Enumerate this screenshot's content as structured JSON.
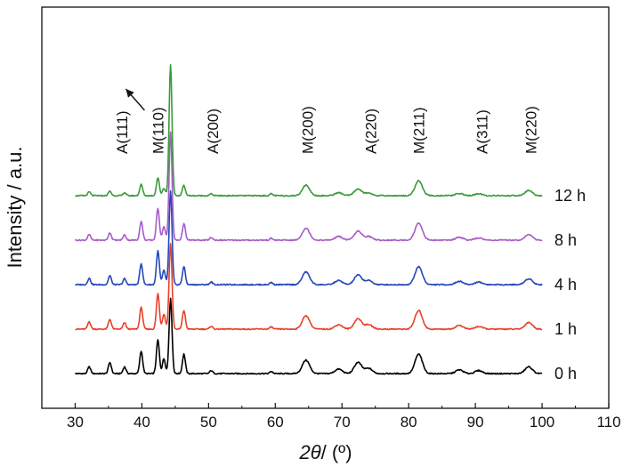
{
  "chart_data": {
    "type": "line",
    "title": "",
    "xlabel": "2θ/ (º)",
    "xlabel_parts": {
      "symbol": "2θ",
      "unit": "/ (º)"
    },
    "ylabel": "Intensity / a.u.",
    "xlim": [
      25,
      110
    ],
    "xticks": [
      30,
      40,
      50,
      60,
      70,
      80,
      90,
      100,
      110
    ],
    "xtick_labels": [
      "30",
      "40",
      "50",
      "60",
      "70",
      "80",
      "90",
      "100",
      "110"
    ],
    "y_ticks_shown": false,
    "grid": false,
    "legend": "none; series labelled at right end of each trace",
    "x_range_of_traces": [
      30,
      100
    ],
    "stacking_offset": 1.0,
    "series": [
      {
        "name": "0 h",
        "color": "#000000",
        "offset": 0
      },
      {
        "name": "1 h",
        "color": "#e8412a",
        "offset": 1
      },
      {
        "name": "4 h",
        "color": "#2448b8",
        "offset": 2
      },
      {
        "name": "8 h",
        "color": "#a65cc8",
        "offset": 3
      },
      {
        "name": "12 h",
        "color": "#3a9a3a",
        "offset": 4
      }
    ],
    "peaks": [
      {
        "x": 32.1,
        "h": [
          0.18,
          0.2,
          0.17,
          0.15,
          0.1
        ]
      },
      {
        "x": 35.2,
        "h": [
          0.3,
          0.26,
          0.24,
          0.2,
          0.12
        ]
      },
      {
        "x": 37.4,
        "h": [
          0.18,
          0.17,
          0.16,
          0.14,
          0.08
        ]
      },
      {
        "x": 39.9,
        "h": [
          0.6,
          0.58,
          0.56,
          0.5,
          0.3
        ]
      },
      {
        "x": 42.4,
        "h": [
          0.9,
          0.95,
          0.9,
          0.86,
          0.48
        ]
      },
      {
        "x": 43.3,
        "h": [
          0.4,
          0.4,
          0.38,
          0.36,
          0.2
        ]
      },
      {
        "x": 44.3,
        "h": [
          2.0,
          2.3,
          2.5,
          2.9,
          3.5
        ]
      },
      {
        "x": 46.3,
        "h": [
          0.52,
          0.5,
          0.48,
          0.44,
          0.28
        ]
      },
      {
        "x": 50.4,
        "h": [
          0.08,
          0.08,
          0.07,
          0.07,
          0.05
        ]
      },
      {
        "x": 59.4,
        "h": [
          0.06,
          0.06,
          0.06,
          0.05,
          0.05
        ]
      },
      {
        "x": 64.6,
        "h": [
          0.36,
          0.36,
          0.34,
          0.32,
          0.28
        ]
      },
      {
        "x": 69.5,
        "h": [
          0.12,
          0.12,
          0.11,
          0.1,
          0.08
        ]
      },
      {
        "x": 72.4,
        "h": [
          0.3,
          0.28,
          0.26,
          0.24,
          0.18
        ]
      },
      {
        "x": 74.0,
        "h": [
          0.14,
          0.12,
          0.11,
          0.1,
          0.07
        ]
      },
      {
        "x": 81.5,
        "h": [
          0.52,
          0.5,
          0.48,
          0.46,
          0.4
        ]
      },
      {
        "x": 87.6,
        "h": [
          0.1,
          0.1,
          0.09,
          0.08,
          0.06
        ]
      },
      {
        "x": 90.5,
        "h": [
          0.08,
          0.07,
          0.07,
          0.06,
          0.05
        ]
      },
      {
        "x": 98.0,
        "h": [
          0.18,
          0.18,
          0.16,
          0.15,
          0.14
        ]
      }
    ],
    "annotations": [
      {
        "text": "A(111)",
        "x": 37.0
      },
      {
        "text": "M(110)",
        "x": 42.4
      },
      {
        "text": "A(200)",
        "x": 50.6
      },
      {
        "text": "M(200)",
        "x": 64.8
      },
      {
        "text": "A(220)",
        "x": 74.3
      },
      {
        "text": "M(211)",
        "x": 81.5
      },
      {
        "text": "A(311)",
        "x": 91.0
      },
      {
        "text": "M(220)",
        "x": 98.3
      }
    ]
  }
}
